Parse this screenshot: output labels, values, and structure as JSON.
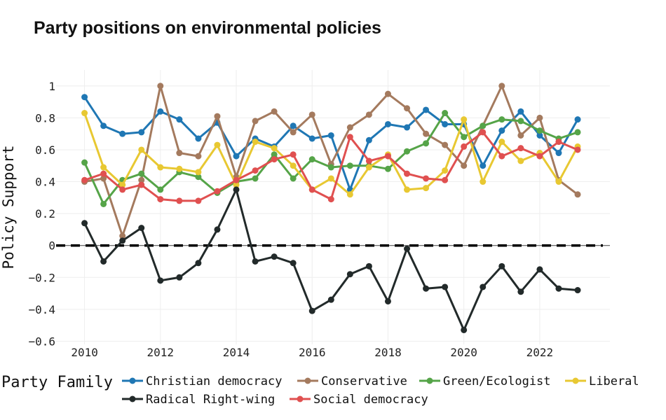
{
  "chart_data": {
    "type": "line",
    "title": "Party positions on environmental policies",
    "xlabel": "",
    "ylabel": "Policy Support",
    "xlim": [
      2009.25,
      2023.85
    ],
    "ylim": [
      -0.62,
      1.1
    ],
    "x_ticks": [
      2010,
      2012,
      2014,
      2016,
      2018,
      2020,
      2022
    ],
    "y_ticks": [
      1,
      0.8,
      0.6,
      0.4,
      0.2,
      0,
      -0.2,
      -0.4,
      -0.6
    ],
    "y_tick_labels": [
      "1",
      "0.8",
      "0.6",
      "0.4",
      "0.2",
      "0",
      "−0.2",
      "−0.4",
      "−0.6"
    ],
    "reference_line": 0,
    "grid": true,
    "legend_title": "Party Family",
    "legend_position": "bottom",
    "x": [
      2010,
      2010.5,
      2011,
      2011.5,
      2012,
      2012.5,
      2013,
      2013.5,
      2014,
      2014.5,
      2015,
      2015.5,
      2016,
      2016.5,
      2017,
      2017.5,
      2018,
      2018.5,
      2019,
      2019.5,
      2020,
      2020.5,
      2021,
      2021.5,
      2022,
      2022.5,
      2023
    ],
    "series": [
      {
        "name": "Christian democracy",
        "color": "#1f77b4",
        "values": [
          0.93,
          0.75,
          0.7,
          0.71,
          0.84,
          0.79,
          0.67,
          0.77,
          0.56,
          0.67,
          0.62,
          0.75,
          0.67,
          0.69,
          0.35,
          0.66,
          0.76,
          0.74,
          0.85,
          0.76,
          0.76,
          0.5,
          0.72,
          0.84,
          0.69,
          0.58,
          0.79
        ]
      },
      {
        "name": "Conservative",
        "color": "#a47a5e",
        "values": [
          0.4,
          0.42,
          0.06,
          0.41,
          1.0,
          0.58,
          0.56,
          0.81,
          0.43,
          0.78,
          0.84,
          0.71,
          0.82,
          0.51,
          0.74,
          0.82,
          0.95,
          0.86,
          0.7,
          0.63,
          0.5,
          0.75,
          1.0,
          0.69,
          0.8,
          0.41,
          0.32
        ]
      },
      {
        "name": "Green/Ecologist",
        "color": "#55a448",
        "values": [
          0.52,
          0.26,
          0.41,
          0.45,
          0.35,
          0.46,
          0.43,
          0.33,
          0.4,
          0.42,
          0.57,
          0.42,
          0.54,
          0.49,
          0.5,
          0.5,
          0.48,
          0.59,
          0.64,
          0.83,
          0.68,
          0.75,
          0.79,
          0.78,
          0.72,
          0.67,
          0.71
        ]
      },
      {
        "name": "Liberal",
        "color": "#e8c832",
        "values": [
          0.83,
          0.49,
          0.38,
          0.6,
          0.49,
          0.48,
          0.46,
          0.63,
          0.38,
          0.65,
          0.61,
          0.5,
          0.35,
          0.42,
          0.32,
          0.49,
          0.57,
          0.35,
          0.36,
          0.47,
          0.79,
          0.4,
          0.65,
          0.53,
          0.58,
          0.4,
          0.62
        ]
      },
      {
        "name": "Radical Right-wing",
        "color": "#222a2a",
        "values": [
          0.14,
          -0.1,
          0.03,
          0.11,
          -0.22,
          -0.2,
          -0.11,
          0.1,
          0.35,
          -0.1,
          -0.07,
          -0.11,
          -0.41,
          -0.34,
          -0.18,
          -0.13,
          -0.35,
          -0.02,
          -0.27,
          -0.26,
          -0.53,
          -0.26,
          -0.13,
          -0.29,
          -0.15,
          -0.27,
          -0.28
        ]
      },
      {
        "name": "Social democracy",
        "color": "#e05050",
        "values": [
          0.41,
          0.45,
          0.35,
          0.38,
          0.29,
          0.28,
          0.28,
          0.34,
          0.41,
          0.47,
          0.54,
          0.57,
          0.35,
          0.29,
          0.68,
          0.53,
          0.56,
          0.45,
          0.42,
          0.41,
          0.62,
          0.71,
          0.56,
          0.61,
          0.56,
          0.65,
          0.6
        ]
      }
    ]
  }
}
